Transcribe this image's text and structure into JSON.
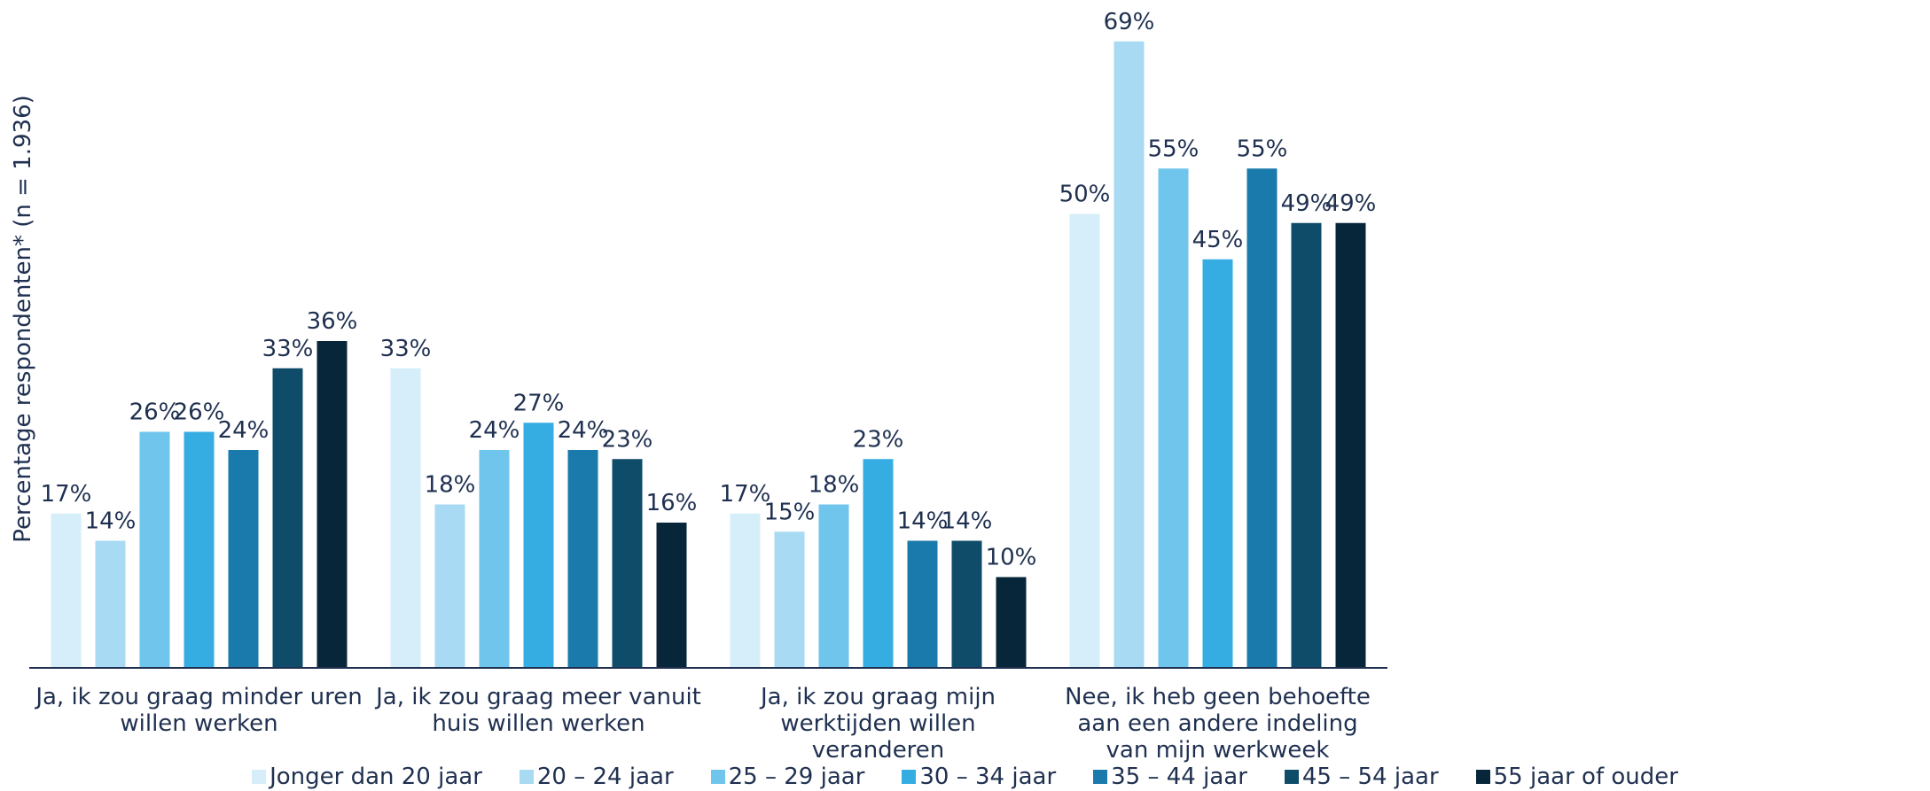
{
  "chart_data": {
    "type": "bar",
    "y_label": "Percentage respondenten* (n = 1.936)",
    "categories": [
      "Ja, ik zou graag minder uren willen werken",
      "Ja, ik zou graag meer vanuit huis willen werken",
      "Ja, ik zou graag mijn werktijden willen veranderen",
      "Nee, ik heb geen behoefte aan een andere indeling van mijn werkweek"
    ],
    "series": [
      {
        "name": "Jonger dan 20 jaar",
        "color": "#d6eef9",
        "values": [
          17,
          33,
          17,
          50
        ],
        "value_labels": [
          "17%",
          "33%",
          "17%",
          "50%"
        ]
      },
      {
        "name": "20 – 24 jaar",
        "color": "#a8daf3",
        "values": [
          14,
          18,
          15,
          69
        ],
        "value_labels": [
          "14%",
          "18%",
          "15%",
          "69%"
        ]
      },
      {
        "name": "25 – 29 jaar",
        "color": "#70c5ec",
        "values": [
          26,
          24,
          18,
          55
        ],
        "value_labels": [
          "26%",
          "24%",
          "18%",
          "55%"
        ]
      },
      {
        "name": "30 – 34 jaar",
        "color": "#36ade2",
        "values": [
          26,
          27,
          23,
          45
        ],
        "value_labels": [
          "26%",
          "27%",
          "23%",
          "45%"
        ]
      },
      {
        "name": "35 – 44 jaar",
        "color": "#1a7aab",
        "values": [
          24,
          24,
          14,
          55
        ],
        "value_labels": [
          "24%",
          "24%",
          "14%",
          "55%"
        ]
      },
      {
        "name": "45 – 54 jaar",
        "color": "#0f4c69",
        "values": [
          33,
          23,
          14,
          49
        ],
        "value_labels": [
          "33%",
          "23%",
          "14%",
          "49%"
        ]
      },
      {
        "name": "55 jaar of ouder",
        "color": "#08263a",
        "values": [
          36,
          16,
          10,
          49
        ],
        "value_labels": [
          "36%",
          "16%",
          "10%",
          "49%"
        ]
      }
    ],
    "ylim": [
      0,
      72
    ]
  }
}
